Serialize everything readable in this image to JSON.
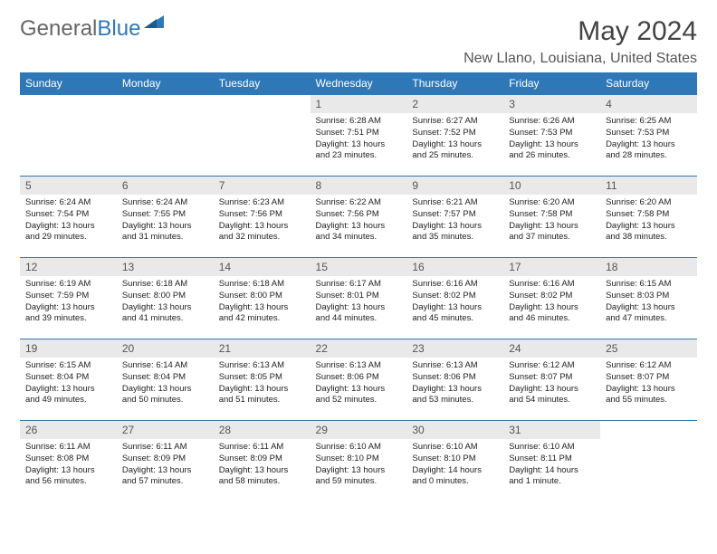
{
  "brand": {
    "part1": "General",
    "part2": "Blue"
  },
  "title": "May 2024",
  "location": "New Llano, Louisiana, United States",
  "colors": {
    "header_bg": "#2f78b7",
    "header_text": "#ffffff",
    "daynum_bg": "#e9e9e9",
    "row_border": "#2f78b7",
    "page_bg": "#ffffff",
    "title_color": "#444444",
    "body_text": "#222222"
  },
  "day_labels": [
    "Sunday",
    "Monday",
    "Tuesday",
    "Wednesday",
    "Thursday",
    "Friday",
    "Saturday"
  ],
  "weeks": [
    [
      null,
      null,
      null,
      {
        "n": "1",
        "sr": "6:28 AM",
        "ss": "7:51 PM",
        "dl": "13 hours and 23 minutes."
      },
      {
        "n": "2",
        "sr": "6:27 AM",
        "ss": "7:52 PM",
        "dl": "13 hours and 25 minutes."
      },
      {
        "n": "3",
        "sr": "6:26 AM",
        "ss": "7:53 PM",
        "dl": "13 hours and 26 minutes."
      },
      {
        "n": "4",
        "sr": "6:25 AM",
        "ss": "7:53 PM",
        "dl": "13 hours and 28 minutes."
      }
    ],
    [
      {
        "n": "5",
        "sr": "6:24 AM",
        "ss": "7:54 PM",
        "dl": "13 hours and 29 minutes."
      },
      {
        "n": "6",
        "sr": "6:24 AM",
        "ss": "7:55 PM",
        "dl": "13 hours and 31 minutes."
      },
      {
        "n": "7",
        "sr": "6:23 AM",
        "ss": "7:56 PM",
        "dl": "13 hours and 32 minutes."
      },
      {
        "n": "8",
        "sr": "6:22 AM",
        "ss": "7:56 PM",
        "dl": "13 hours and 34 minutes."
      },
      {
        "n": "9",
        "sr": "6:21 AM",
        "ss": "7:57 PM",
        "dl": "13 hours and 35 minutes."
      },
      {
        "n": "10",
        "sr": "6:20 AM",
        "ss": "7:58 PM",
        "dl": "13 hours and 37 minutes."
      },
      {
        "n": "11",
        "sr": "6:20 AM",
        "ss": "7:58 PM",
        "dl": "13 hours and 38 minutes."
      }
    ],
    [
      {
        "n": "12",
        "sr": "6:19 AM",
        "ss": "7:59 PM",
        "dl": "13 hours and 39 minutes."
      },
      {
        "n": "13",
        "sr": "6:18 AM",
        "ss": "8:00 PM",
        "dl": "13 hours and 41 minutes."
      },
      {
        "n": "14",
        "sr": "6:18 AM",
        "ss": "8:00 PM",
        "dl": "13 hours and 42 minutes."
      },
      {
        "n": "15",
        "sr": "6:17 AM",
        "ss": "8:01 PM",
        "dl": "13 hours and 44 minutes."
      },
      {
        "n": "16",
        "sr": "6:16 AM",
        "ss": "8:02 PM",
        "dl": "13 hours and 45 minutes."
      },
      {
        "n": "17",
        "sr": "6:16 AM",
        "ss": "8:02 PM",
        "dl": "13 hours and 46 minutes."
      },
      {
        "n": "18",
        "sr": "6:15 AM",
        "ss": "8:03 PM",
        "dl": "13 hours and 47 minutes."
      }
    ],
    [
      {
        "n": "19",
        "sr": "6:15 AM",
        "ss": "8:04 PM",
        "dl": "13 hours and 49 minutes."
      },
      {
        "n": "20",
        "sr": "6:14 AM",
        "ss": "8:04 PM",
        "dl": "13 hours and 50 minutes."
      },
      {
        "n": "21",
        "sr": "6:13 AM",
        "ss": "8:05 PM",
        "dl": "13 hours and 51 minutes."
      },
      {
        "n": "22",
        "sr": "6:13 AM",
        "ss": "8:06 PM",
        "dl": "13 hours and 52 minutes."
      },
      {
        "n": "23",
        "sr": "6:13 AM",
        "ss": "8:06 PM",
        "dl": "13 hours and 53 minutes."
      },
      {
        "n": "24",
        "sr": "6:12 AM",
        "ss": "8:07 PM",
        "dl": "13 hours and 54 minutes."
      },
      {
        "n": "25",
        "sr": "6:12 AM",
        "ss": "8:07 PM",
        "dl": "13 hours and 55 minutes."
      }
    ],
    [
      {
        "n": "26",
        "sr": "6:11 AM",
        "ss": "8:08 PM",
        "dl": "13 hours and 56 minutes."
      },
      {
        "n": "27",
        "sr": "6:11 AM",
        "ss": "8:09 PM",
        "dl": "13 hours and 57 minutes."
      },
      {
        "n": "28",
        "sr": "6:11 AM",
        "ss": "8:09 PM",
        "dl": "13 hours and 58 minutes."
      },
      {
        "n": "29",
        "sr": "6:10 AM",
        "ss": "8:10 PM",
        "dl": "13 hours and 59 minutes."
      },
      {
        "n": "30",
        "sr": "6:10 AM",
        "ss": "8:10 PM",
        "dl": "14 hours and 0 minutes."
      },
      {
        "n": "31",
        "sr": "6:10 AM",
        "ss": "8:11 PM",
        "dl": "14 hours and 1 minute."
      },
      null
    ]
  ],
  "labels": {
    "sunrise": "Sunrise:",
    "sunset": "Sunset:",
    "daylight": "Daylight:"
  }
}
